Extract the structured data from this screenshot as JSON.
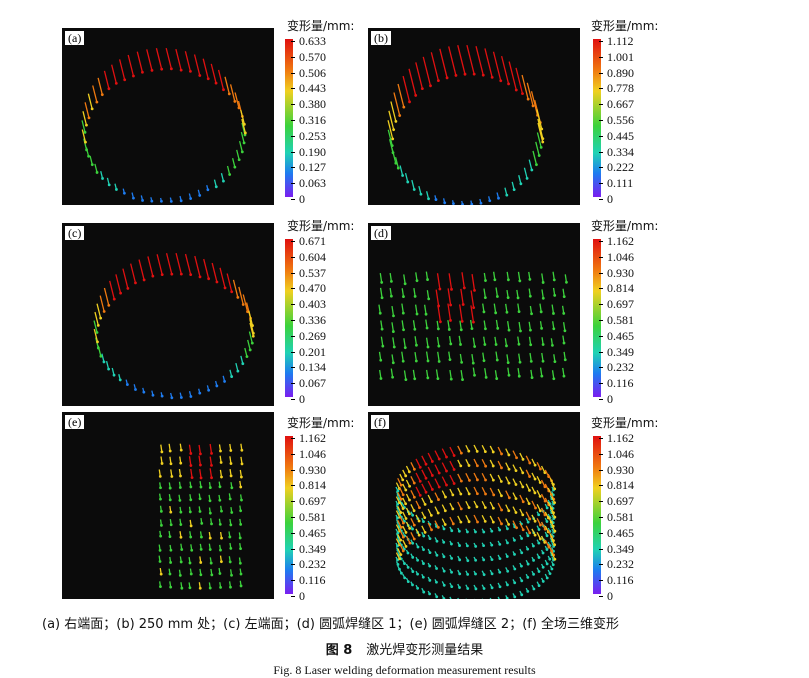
{
  "panels": [
    {
      "id": "a",
      "label": "(a)",
      "cbar_title": "变形量/mm:",
      "ticks": [
        "0.633",
        "0.570",
        "0.506",
        "0.443",
        "0.380",
        "0.316",
        "0.253",
        "0.190",
        "0.127",
        "0.063",
        "0"
      ]
    },
    {
      "id": "b",
      "label": "(b)",
      "cbar_title": "变形量/mm:",
      "ticks": [
        "1.112",
        "1.001",
        "0.890",
        "0.778",
        "0.667",
        "0.556",
        "0.445",
        "0.334",
        "0.222",
        "0.111",
        "0"
      ]
    },
    {
      "id": "c",
      "label": "(c)",
      "cbar_title": "变形量/mm:",
      "ticks": [
        "0.671",
        "0.604",
        "0.537",
        "0.470",
        "0.403",
        "0.336",
        "0.269",
        "0.201",
        "0.134",
        "0.067",
        "0"
      ]
    },
    {
      "id": "d",
      "label": "(d)",
      "cbar_title": "变形量/mm:",
      "ticks": [
        "1.162",
        "1.046",
        "0.930",
        "0.814",
        "0.697",
        "0.581",
        "0.465",
        "0.349",
        "0.232",
        "0.116",
        "0"
      ]
    },
    {
      "id": "e",
      "label": "(e)",
      "cbar_title": "变形量/mm:",
      "ticks": [
        "1.162",
        "1.046",
        "0.930",
        "0.814",
        "0.697",
        "0.581",
        "0.465",
        "0.349",
        "0.232",
        "0.116",
        "0"
      ]
    },
    {
      "id": "f",
      "label": "(f)",
      "cbar_title": "变形量/mm:",
      "ticks": [
        "1.162",
        "1.046",
        "0.930",
        "0.814",
        "0.697",
        "0.581",
        "0.465",
        "0.349",
        "0.232",
        "0.116",
        "0"
      ]
    }
  ],
  "caption": "(a) 右端面；(b) 250 mm 处；(c) 左端面；(d) 圆弧焊缝区 1；(e) 圆弧焊缝区 2；(f) 全场三维变形",
  "figure": {
    "number": "图 8",
    "title": "激光焊变形测量结果",
    "english": "Fig. 8   Laser welding deformation measurement results"
  }
}
